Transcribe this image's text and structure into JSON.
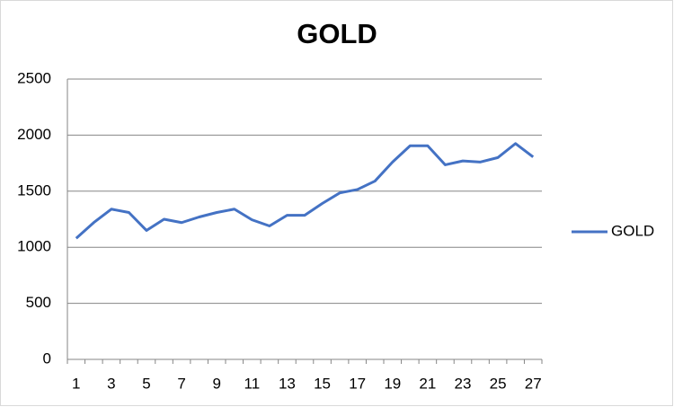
{
  "chart_data": {
    "type": "line",
    "title": "GOLD",
    "categories": [
      "1",
      null,
      "3",
      null,
      "5",
      null,
      "7",
      null,
      "9",
      null,
      "11",
      null,
      "13",
      null,
      "15",
      null,
      "17",
      null,
      "19",
      null,
      "21",
      null,
      "23",
      null,
      "25",
      null,
      "27"
    ],
    "series": [
      {
        "name": "GOLD",
        "color": "#4472c4",
        "values": [
          1080,
          1220,
          1340,
          1310,
          1150,
          1250,
          1220,
          1270,
          1310,
          1340,
          1245,
          1190,
          1285,
          1285,
          1390,
          1485,
          1515,
          1590,
          1760,
          1905,
          1905,
          1735,
          1770,
          1760,
          1800,
          1925,
          1805
        ]
      }
    ],
    "ylim": [
      0,
      2500
    ],
    "yticks": [
      0,
      500,
      1000,
      1500,
      2000,
      2500
    ],
    "grid": true,
    "legend": "right"
  }
}
